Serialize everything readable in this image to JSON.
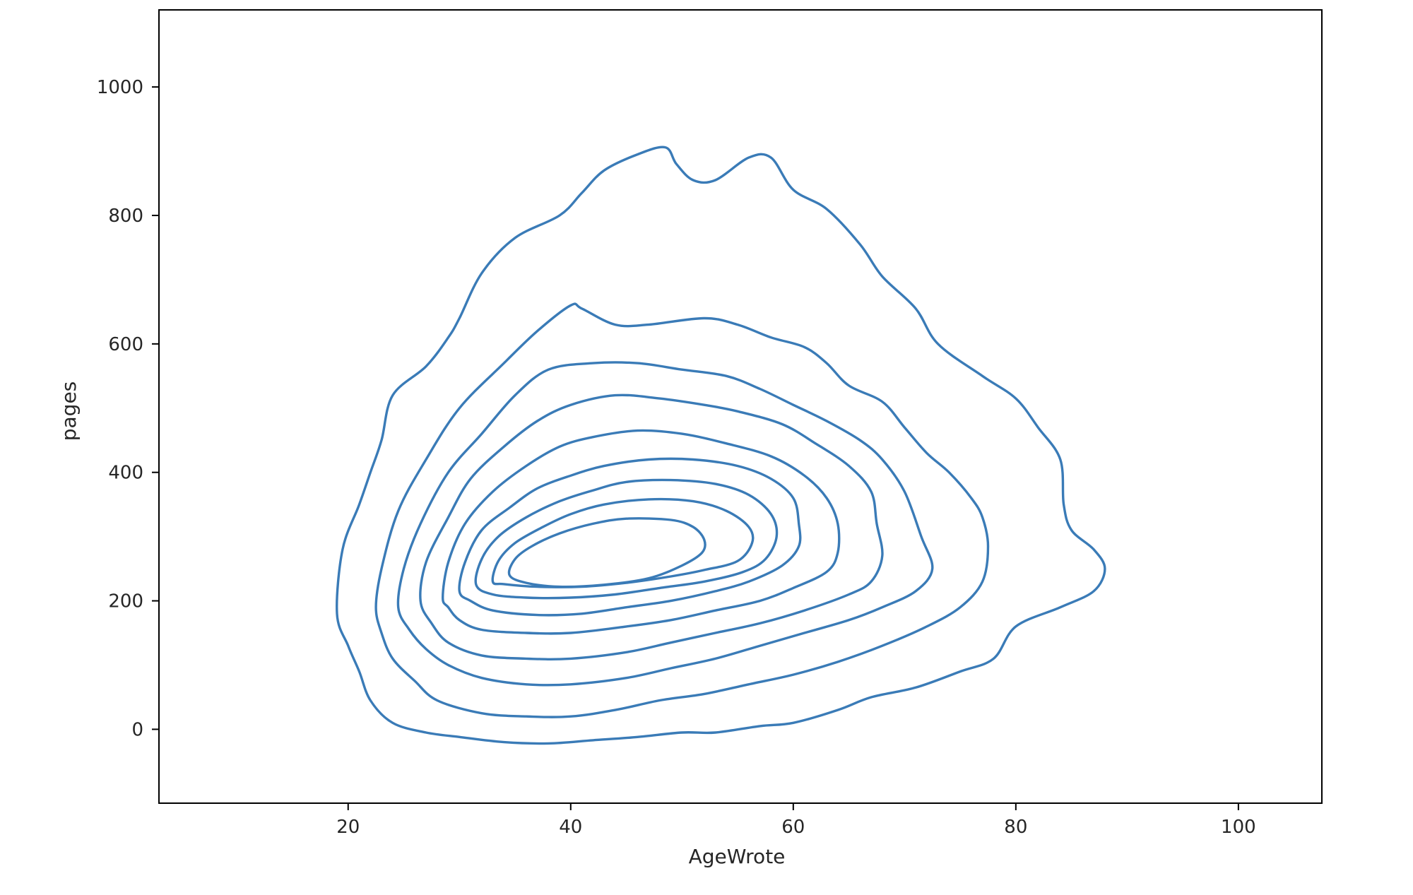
{
  "chart_data": {
    "type": "contour",
    "title": "",
    "xlabel": "AgeWrote",
    "ylabel": "pages",
    "xlim": [
      3,
      107.5
    ],
    "ylim": [
      -115,
      1120
    ],
    "xticks": [
      20,
      40,
      60,
      80,
      100
    ],
    "yticks": [
      0,
      200,
      400,
      600,
      800,
      1000
    ],
    "xtick_labels": [
      "20",
      "40",
      "60",
      "80",
      "100"
    ],
    "ytick_labels": [
      "0",
      "200",
      "400",
      "600",
      "800",
      "1000"
    ],
    "grid": false,
    "legend": "none",
    "line_color": "#3a7bb7",
    "levels": [
      {
        "points": [
          [
            19.0,
            180
          ],
          [
            19.5,
            280
          ],
          [
            21,
            350
          ],
          [
            22,
            400
          ],
          [
            23,
            450
          ],
          [
            24,
            520
          ],
          [
            27,
            565
          ],
          [
            29,
            610
          ],
          [
            30,
            640
          ],
          [
            32,
            710
          ],
          [
            35,
            765
          ],
          [
            39,
            800
          ],
          [
            41,
            835
          ],
          [
            43,
            870
          ],
          [
            46,
            895
          ],
          [
            48.5,
            906
          ],
          [
            49.5,
            880
          ],
          [
            51,
            855
          ],
          [
            53,
            855
          ],
          [
            56,
            890
          ],
          [
            58,
            890
          ],
          [
            60,
            840
          ],
          [
            63,
            810
          ],
          [
            66,
            755
          ],
          [
            68,
            705
          ],
          [
            71,
            655
          ],
          [
            73,
            600
          ],
          [
            77,
            550
          ],
          [
            80,
            515
          ],
          [
            82,
            470
          ],
          [
            84,
            420
          ],
          [
            84.3,
            350
          ],
          [
            85,
            310
          ],
          [
            87,
            280
          ],
          [
            88,
            250
          ],
          [
            87,
            215
          ],
          [
            84,
            190
          ],
          [
            80,
            160
          ],
          [
            78,
            110
          ],
          [
            75,
            90
          ],
          [
            71,
            65
          ],
          [
            67,
            50
          ],
          [
            64,
            30
          ],
          [
            60,
            10
          ],
          [
            57,
            5
          ],
          [
            53,
            -5
          ],
          [
            50,
            -5
          ],
          [
            46,
            -12
          ],
          [
            42,
            -17
          ],
          [
            38,
            -22
          ],
          [
            34,
            -20
          ],
          [
            30,
            -12
          ],
          [
            27,
            -5
          ],
          [
            24,
            10
          ],
          [
            22,
            45
          ],
          [
            21,
            90
          ],
          [
            20,
            130
          ]
        ]
      },
      {
        "points": [
          [
            22.5,
            190
          ],
          [
            23,
            250
          ],
          [
            24.5,
            340
          ],
          [
            27,
            420
          ],
          [
            30,
            500
          ],
          [
            34,
            570
          ],
          [
            37,
            620
          ],
          [
            40,
            660
          ],
          [
            41,
            655
          ],
          [
            44,
            630
          ],
          [
            47,
            630
          ],
          [
            52,
            640
          ],
          [
            55,
            630
          ],
          [
            58,
            610
          ],
          [
            61,
            595
          ],
          [
            63,
            570
          ],
          [
            65,
            535
          ],
          [
            68,
            510
          ],
          [
            70,
            470
          ],
          [
            72,
            430
          ],
          [
            74,
            400
          ],
          [
            76,
            360
          ],
          [
            77,
            330
          ],
          [
            77.5,
            285
          ],
          [
            77,
            230
          ],
          [
            75,
            190
          ],
          [
            72,
            160
          ],
          [
            68,
            130
          ],
          [
            64,
            105
          ],
          [
            60,
            85
          ],
          [
            56,
            70
          ],
          [
            52,
            55
          ],
          [
            48,
            45
          ],
          [
            44,
            30
          ],
          [
            40,
            20
          ],
          [
            36,
            20
          ],
          [
            32,
            25
          ],
          [
            28,
            45
          ],
          [
            26,
            75
          ],
          [
            24,
            110
          ],
          [
            23,
            150
          ]
        ]
      },
      {
        "points": [
          [
            24.5,
            190
          ],
          [
            25,
            250
          ],
          [
            26.5,
            320
          ],
          [
            29,
            400
          ],
          [
            32,
            460
          ],
          [
            35,
            520
          ],
          [
            38,
            560
          ],
          [
            42,
            570
          ],
          [
            46,
            570
          ],
          [
            50,
            560
          ],
          [
            54,
            550
          ],
          [
            57,
            530
          ],
          [
            60,
            505
          ],
          [
            63,
            480
          ],
          [
            66,
            450
          ],
          [
            68,
            420
          ],
          [
            70,
            370
          ],
          [
            71.5,
            300
          ],
          [
            72.5,
            250
          ],
          [
            71,
            215
          ],
          [
            68,
            190
          ],
          [
            65,
            170
          ],
          [
            61,
            150
          ],
          [
            57,
            130
          ],
          [
            53,
            110
          ],
          [
            49,
            95
          ],
          [
            45,
            80
          ],
          [
            40,
            70
          ],
          [
            36,
            70
          ],
          [
            32,
            80
          ],
          [
            29,
            100
          ],
          [
            27,
            125
          ],
          [
            25.5,
            155
          ]
        ]
      },
      {
        "points": [
          [
            26.5,
            200
          ],
          [
            27,
            260
          ],
          [
            29,
            330
          ],
          [
            31,
            390
          ],
          [
            34,
            440
          ],
          [
            37,
            480
          ],
          [
            40,
            505
          ],
          [
            44,
            520
          ],
          [
            48,
            515
          ],
          [
            52,
            505
          ],
          [
            55,
            495
          ],
          [
            59,
            475
          ],
          [
            62,
            445
          ],
          [
            65,
            410
          ],
          [
            67,
            370
          ],
          [
            67.5,
            320
          ],
          [
            68,
            270
          ],
          [
            67,
            230
          ],
          [
            65,
            210
          ],
          [
            61,
            185
          ],
          [
            57,
            165
          ],
          [
            53,
            150
          ],
          [
            49,
            135
          ],
          [
            45,
            120
          ],
          [
            40,
            110
          ],
          [
            36,
            110
          ],
          [
            32,
            115
          ],
          [
            29,
            135
          ],
          [
            27.5,
            165
          ]
        ]
      },
      {
        "points": [
          [
            28.5,
            205
          ],
          [
            29,
            260
          ],
          [
            30.5,
            320
          ],
          [
            33,
            370
          ],
          [
            36,
            410
          ],
          [
            39,
            440
          ],
          [
            42,
            455
          ],
          [
            46,
            465
          ],
          [
            50,
            460
          ],
          [
            54,
            445
          ],
          [
            58,
            425
          ],
          [
            61,
            395
          ],
          [
            63,
            360
          ],
          [
            64,
            320
          ],
          [
            64,
            275
          ],
          [
            63,
            245
          ],
          [
            60,
            220
          ],
          [
            57,
            200
          ],
          [
            53,
            185
          ],
          [
            49,
            170
          ],
          [
            45,
            160
          ],
          [
            40,
            150
          ],
          [
            36,
            150
          ],
          [
            32,
            155
          ],
          [
            30,
            170
          ],
          [
            29,
            190
          ]
        ]
      },
      {
        "points": [
          [
            30,
            215
          ],
          [
            30.5,
            260
          ],
          [
            32,
            310
          ],
          [
            34.5,
            345
          ],
          [
            37,
            375
          ],
          [
            40,
            395
          ],
          [
            43,
            410
          ],
          [
            47,
            420
          ],
          [
            51,
            420
          ],
          [
            55,
            410
          ],
          [
            58,
            390
          ],
          [
            60,
            360
          ],
          [
            60.5,
            320
          ],
          [
            60.5,
            285
          ],
          [
            59,
            255
          ],
          [
            56,
            230
          ],
          [
            53,
            215
          ],
          [
            49,
            200
          ],
          [
            45,
            190
          ],
          [
            41,
            180
          ],
          [
            37,
            178
          ],
          [
            33,
            185
          ],
          [
            31,
            200
          ]
        ]
      },
      {
        "points": [
          [
            31.5,
            225
          ],
          [
            32,
            265
          ],
          [
            33.5,
            300
          ],
          [
            36,
            330
          ],
          [
            39,
            355
          ],
          [
            42,
            372
          ],
          [
            45,
            385
          ],
          [
            49,
            388
          ],
          [
            53,
            382
          ],
          [
            56,
            365
          ],
          [
            58,
            335
          ],
          [
            58.5,
            300
          ],
          [
            57.5,
            265
          ],
          [
            55.5,
            245
          ],
          [
            52,
            230
          ],
          [
            48,
            220
          ],
          [
            44,
            210
          ],
          [
            40,
            205
          ],
          [
            36,
            205
          ],
          [
            33,
            210
          ]
        ]
      },
      {
        "points": [
          [
            33,
            230
          ],
          [
            33.5,
            262
          ],
          [
            35,
            290
          ],
          [
            37.5,
            315
          ],
          [
            40,
            335
          ],
          [
            43,
            350
          ],
          [
            47,
            358
          ],
          [
            51,
            355
          ],
          [
            54,
            340
          ],
          [
            56,
            315
          ],
          [
            56.3,
            290
          ],
          [
            55,
            262
          ],
          [
            52,
            248
          ],
          [
            49,
            238
          ],
          [
            45,
            228
          ],
          [
            41,
            222
          ],
          [
            37,
            222
          ],
          [
            34,
            226
          ]
        ]
      },
      {
        "points": [
          [
            34.5,
            240
          ],
          [
            35,
            265
          ],
          [
            36.5,
            285
          ],
          [
            39,
            305
          ],
          [
            42,
            320
          ],
          [
            45,
            328
          ],
          [
            49,
            326
          ],
          [
            51,
            315
          ],
          [
            52,
            295
          ],
          [
            51.8,
            275
          ],
          [
            50,
            255
          ],
          [
            47,
            235
          ],
          [
            43,
            225
          ],
          [
            39,
            222
          ],
          [
            36,
            228
          ]
        ]
      }
    ]
  }
}
